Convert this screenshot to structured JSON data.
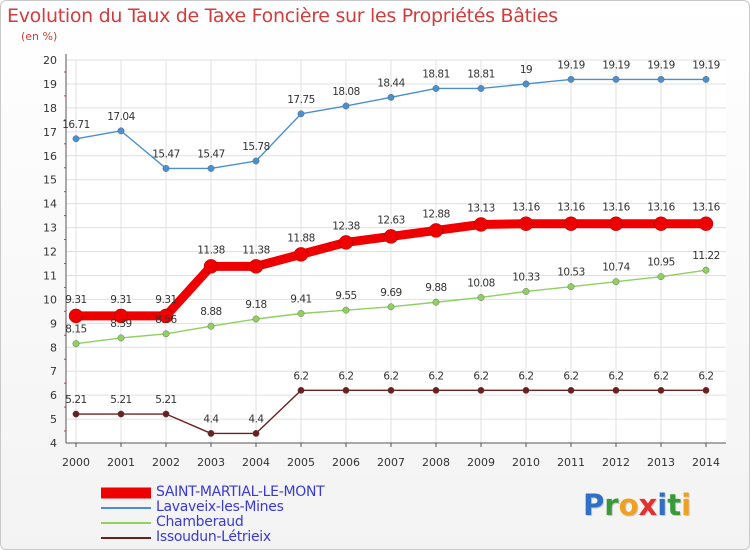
{
  "title": "Evolution du Taux de Taxe Foncière sur les Propriétés Bâties",
  "unit_label": "(en %)",
  "logo": {
    "letters": [
      {
        "ch": "P",
        "color": "#2f6fc4"
      },
      {
        "ch": "r",
        "color": "#3a9a3a"
      },
      {
        "ch": "o",
        "color": "#f0a020"
      },
      {
        "ch": "x",
        "color": "#e03030"
      },
      {
        "ch": "i",
        "color": "#2f6fc4"
      },
      {
        "ch": "t",
        "color": "#3a9a3a"
      },
      {
        "ch": "i",
        "color": "#f0a020"
      }
    ]
  },
  "chart_data": {
    "type": "line",
    "title": "Evolution du Taux de Taxe Foncière sur les Propriétés Bâties",
    "ylabel": "(en %)",
    "xlabel": "",
    "ylim": [
      4,
      20
    ],
    "yticks": [
      "4",
      "5",
      "6",
      "7",
      "8",
      "9",
      "10",
      "11",
      "12",
      "13",
      "14",
      "15",
      "16",
      "17",
      "18",
      "19",
      "20"
    ],
    "categories": [
      "2000",
      "2001",
      "2002",
      "2003",
      "2004",
      "2005",
      "2006",
      "2007",
      "2008",
      "2009",
      "2010",
      "2011",
      "2012",
      "2013",
      "2014"
    ],
    "grid": true,
    "legend_position": "bottom-left",
    "series": [
      {
        "name": "SAINT-MARTIAL-LE-MONT",
        "color": "#ee0000",
        "emphasis": true,
        "values": [
          9.31,
          9.31,
          9.31,
          11.38,
          11.38,
          11.88,
          12.38,
          12.63,
          12.88,
          13.13,
          13.16,
          13.16,
          13.16,
          13.16,
          13.16
        ],
        "labels": [
          "9.31",
          "9.31",
          "9.31",
          "11.38",
          "11.38",
          "11.88",
          "12.38",
          "12.63",
          "12.88",
          "13.13",
          "13.16",
          "13.16",
          "13.16",
          "13.16",
          "13.16"
        ]
      },
      {
        "name": "Lavaveix-les-Mines",
        "color": "#4a90d0",
        "emphasis": false,
        "values": [
          16.71,
          17.04,
          15.47,
          15.47,
          15.78,
          17.75,
          18.08,
          18.44,
          18.81,
          18.81,
          19.0,
          19.19,
          19.19,
          19.19,
          19.19
        ],
        "labels": [
          "16.71",
          "17.04",
          "15.47",
          "15.47",
          "15.78",
          "17.75",
          "18.08",
          "18.44",
          "18.81",
          "18.81",
          "19",
          "19.19",
          "19.19",
          "19.19",
          "19.19"
        ]
      },
      {
        "name": "Chamberaud",
        "color": "#8fd060",
        "emphasis": false,
        "values": [
          8.15,
          8.39,
          8.56,
          8.88,
          9.18,
          9.41,
          9.55,
          9.69,
          9.88,
          10.08,
          10.33,
          10.53,
          10.74,
          10.95,
          11.22
        ],
        "labels": [
          "8.15",
          "8.39",
          "8.56",
          "8.88",
          "9.18",
          "9.41",
          "9.55",
          "9.69",
          "9.88",
          "10.08",
          "10.33",
          "10.53",
          "10.74",
          "10.95",
          "11.22"
        ]
      },
      {
        "name": "Issoudun-Létrieix",
        "color": "#6b2020",
        "emphasis": false,
        "values": [
          5.21,
          5.21,
          5.21,
          4.4,
          4.4,
          6.2,
          6.2,
          6.2,
          6.2,
          6.2,
          6.2,
          6.2,
          6.2,
          6.2,
          6.2
        ],
        "labels": [
          "5.21",
          "5.21",
          "5.21",
          "4.4",
          "4.4",
          "6.2",
          "6.2",
          "6.2",
          "6.2",
          "6.2",
          "6.2",
          "6.2",
          "6.2",
          "6.2",
          "6.2"
        ]
      }
    ]
  }
}
